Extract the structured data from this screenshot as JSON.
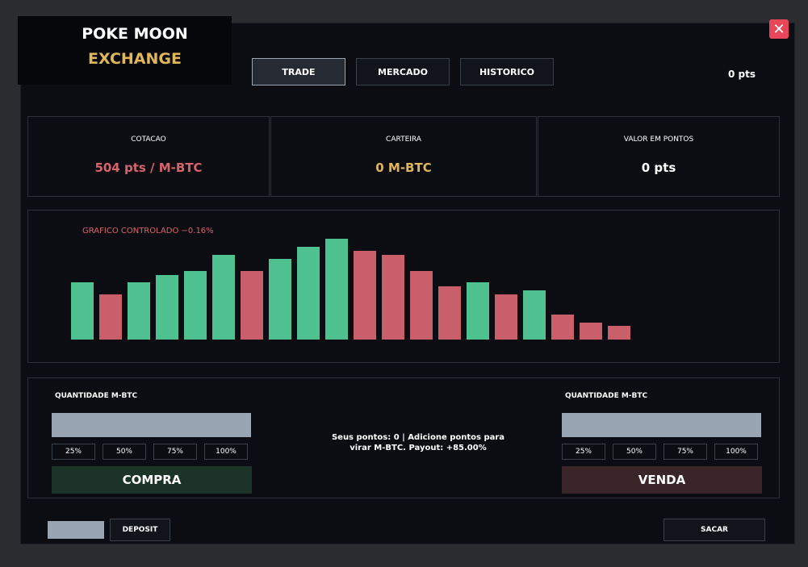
{
  "header": {
    "title_line1": "POKE MOON",
    "title_line2": "EXCHANGE",
    "tabs": [
      "TRADE",
      "MERCADO",
      "HISTORICO"
    ],
    "active_tab": 0,
    "points": "0 pts"
  },
  "stats": [
    {
      "label": "COTACAO",
      "value": "504 pts / M-BTC",
      "color": "#d9636c"
    },
    {
      "label": "CARTEIRA",
      "value": "0 M-BTC",
      "color": "#e0b65a"
    },
    {
      "label": "VALOR EM PONTOS",
      "value": "0 pts",
      "color": "#ffffff"
    }
  ],
  "chart_data": {
    "type": "bar",
    "title": "GRAFICO CONTROLADO  −0.16%",
    "categories": [
      null,
      null,
      null,
      null,
      null,
      null,
      null,
      null,
      null,
      null,
      null,
      null,
      null,
      null,
      null,
      null,
      null,
      null,
      null,
      null
    ],
    "values": [
      71,
      56,
      71,
      80,
      85,
      105,
      85,
      100,
      115,
      125,
      110,
      105,
      85,
      66,
      71,
      56,
      61,
      31,
      21,
      17
    ],
    "colors": [
      "#4fc08f",
      "#c95f6a",
      "#4fc08f",
      "#4fc08f",
      "#4fc08f",
      "#4fc08f",
      "#c95f6a",
      "#4fc08f",
      "#4fc08f",
      "#4fc08f",
      "#c95f6a",
      "#c95f6a",
      "#c95f6a",
      "#c95f6a",
      "#4fc08f",
      "#c95f6a",
      "#4fc08f",
      "#c95f6a",
      "#c95f6a",
      "#c95f6a"
    ]
  },
  "trade": {
    "buy": {
      "label": "QUANTIDADE M-BTC",
      "percent_buttons": [
        "25%",
        "50%",
        "75%",
        "100%"
      ],
      "button": "COMPRA"
    },
    "info": "Seus pontos: 0 | Adicione pontos para virar M-BTC. Payout: +85.00%",
    "sell": {
      "label": "QUANTIDADE M-BTC",
      "percent_buttons": [
        "25%",
        "50%",
        "75%",
        "100%"
      ],
      "button": "VENDA"
    }
  },
  "footer": {
    "deposit": "DEPOSIT",
    "withdraw": "SACAR"
  }
}
